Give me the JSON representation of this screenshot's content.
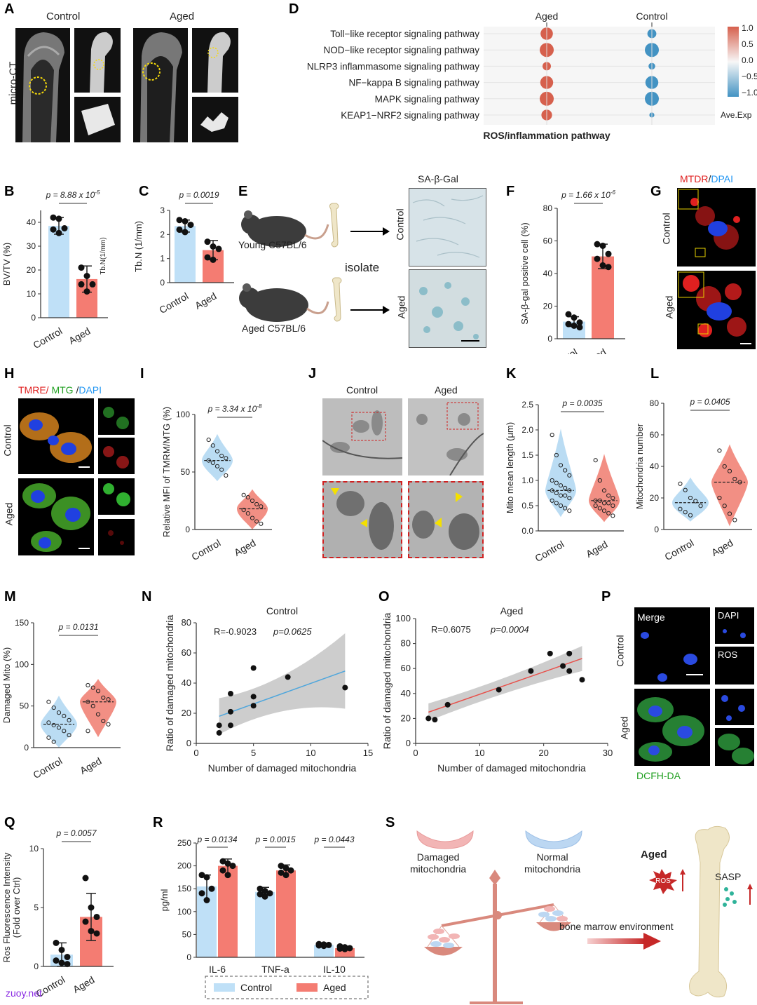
{
  "watermark": "zuoy.net",
  "panels": {
    "A": {
      "letter": "A",
      "col_control": "Control",
      "col_aged": "Aged",
      "row_label": "micro-CT"
    },
    "D": {
      "letter": "D",
      "col_aged": "Aged",
      "col_control": "Control",
      "title": "ROS/inflammation pathway",
      "legend_label": "Ave.Exp",
      "legend_ticks": [
        "1.0",
        "0.5",
        "0.0",
        "−0.5",
        "−1.0"
      ]
    },
    "B": {
      "letter": "B",
      "p": "p = 8.88 x 10",
      "exp": "-5",
      "ylabel": "BV/TV  (%)",
      "side": "Tb.N(1/mm)",
      "yticks": [
        "0",
        "10",
        "20",
        "30",
        "40"
      ],
      "cats": [
        "Control",
        "Aged"
      ]
    },
    "C": {
      "letter": "C",
      "p": "p = 0.0019",
      "ylabel": "Tb.N (1/mm)",
      "yticks": [
        "0",
        "1",
        "2",
        "3"
      ],
      "cats": [
        "Control",
        "Aged"
      ]
    },
    "E": {
      "letter": "E",
      "young": "Young C57BL/6",
      "aged": "Aged C57BL/6",
      "isolate": "isolate",
      "title": "SA-β-Gal",
      "row_control": "Control",
      "row_aged": "Aged"
    },
    "F": {
      "letter": "F",
      "p": "p = 1.66 x 10",
      "exp": "-6",
      "ylabel": "SA-β-gal positive cell (%)",
      "yticks": [
        "0",
        "20",
        "40",
        "60",
        "80"
      ],
      "cats": [
        "Control",
        "Aged"
      ]
    },
    "G": {
      "letter": "G",
      "stain1": "MTDR",
      "slash": "/",
      "stain2": "DPAI",
      "row_control": "Control",
      "row_aged": "Aged"
    },
    "H": {
      "letter": "H",
      "s1": "TMRE/",
      "s2": " MTG",
      "s3": " /",
      "s4": "DAPI",
      "row_control": "Control",
      "row_aged": "Aged"
    },
    "I": {
      "letter": "I",
      "p": "p = 3.34 x 10",
      "exp": "-8",
      "ylabel": "Relative MFI of TMRM/MTG (%)",
      "yticks": [
        "0",
        "50",
        "100"
      ],
      "cats": [
        "Control",
        "Aged"
      ]
    },
    "J": {
      "letter": "J",
      "col_control": "Control",
      "col_aged": "Aged"
    },
    "K": {
      "letter": "K",
      "p": "p = 0.0035",
      "ylabel": "Mito mean length (μm)",
      "yticks": [
        "0.0",
        "0.5",
        "1.0",
        "1.5",
        "2.0",
        "2.5"
      ],
      "cats": [
        "Control",
        "Aged"
      ]
    },
    "L": {
      "letter": "L",
      "p": "p = 0.0405",
      "ylabel": "Mitochondria number",
      "yticks": [
        "0",
        "20",
        "40",
        "60",
        "80"
      ],
      "cats": [
        "Control",
        "Aged"
      ]
    },
    "M": {
      "letter": "M",
      "p": "p = 0.0131",
      "ylabel": "Damaged Mito (%)",
      "yticks": [
        "0",
        "50",
        "100",
        "150"
      ],
      "cats": [
        "Control",
        "Aged"
      ]
    },
    "N": {
      "letter": "N",
      "title": "Control",
      "r": "R=-0.9023",
      "p": "p=0.0625",
      "xlabel": "Number of damaged mitochondria",
      "ylabel": "Ratio of damaged mitochondria",
      "xticks": [
        "0",
        "5",
        "10",
        "15"
      ],
      "yticks": [
        "0",
        "20",
        "40",
        "60",
        "80"
      ]
    },
    "O": {
      "letter": "O",
      "title": "Aged",
      "r": "R=0.6075",
      "p": "p=0.0004",
      "xlabel": "Number of damaged mitochondria",
      "ylabel": "Ratio of damaged mitochondria",
      "xticks": [
        "0",
        "10",
        "20",
        "30"
      ],
      "yticks": [
        "0",
        "20",
        "40",
        "60",
        "80",
        "100"
      ]
    },
    "P": {
      "letter": "P",
      "merge": "Merge",
      "dapi": "DAPI",
      "ros": "ROS",
      "row_control": "Control",
      "row_aged": "Aged",
      "stain": "DCFH-DA"
    },
    "Q": {
      "letter": "Q",
      "p": "p = 0.0057",
      "ylabel1": "Ros Fluorescence Intensity",
      "ylabel2": "(Fold over Ctrl)",
      "yticks": [
        "0",
        "5",
        "10"
      ],
      "cats": [
        "Control",
        "Aged"
      ]
    },
    "R": {
      "letter": "R",
      "ylabel": "pg/ml",
      "yticks": [
        "0",
        "50",
        "100",
        "150",
        "200",
        "250"
      ],
      "groups": [
        "IL-6",
        "TNF-a",
        "IL-10"
      ],
      "pvals": [
        "p = 0.0134",
        "p = 0.0015",
        "p = 0.0443"
      ],
      "legend": [
        "Control",
        "Aged"
      ]
    },
    "S": {
      "letter": "S",
      "damaged": "Damaged\nmitochondria",
      "normal": "Normal\nmitochondria",
      "aged": "Aged",
      "ros": "ROS",
      "sasp": "SASP",
      "env": "bone marrow environment"
    }
  },
  "chart_data": [
    {
      "type": "dotplot",
      "panel": "D",
      "columns": [
        "Aged",
        "Control"
      ],
      "rows": [
        "Toll−like receptor signaling pathway",
        "NOD−like receptor signaling pathway",
        "NLRP3 inflammasome signaling pathway",
        "NF−kappa B signaling pathway",
        "MAPK signaling pathway",
        "KEAP1−NRF2 signaling pathway"
      ],
      "ave_exp": [
        [
          1.0,
          -1.0
        ],
        [
          1.0,
          -1.0
        ],
        [
          1.0,
          -1.0
        ],
        [
          1.0,
          -1.0
        ],
        [
          1.0,
          -1.0
        ],
        [
          1.0,
          -1.0
        ]
      ],
      "size": [
        [
          0.85,
          0.55
        ],
        [
          1.0,
          1.0
        ],
        [
          0.5,
          0.35
        ],
        [
          0.9,
          0.9
        ],
        [
          1.0,
          1.0
        ],
        [
          0.7,
          0.2
        ]
      ],
      "colors": {
        "high": "#d6604d",
        "low": "#4393c3"
      }
    },
    {
      "type": "bar",
      "panel": "B",
      "categories": [
        "Control",
        "Aged"
      ],
      "values": [
        38.5,
        16.2
      ],
      "sd": [
        3.5,
        5.5
      ],
      "ylim": [
        0,
        45
      ],
      "points": [
        [
          42,
          41.5,
          37.5,
          37,
          35.5
        ],
        [
          21,
          17.5,
          14,
          14,
          11
        ]
      ]
    },
    {
      "type": "bar",
      "panel": "C",
      "categories": [
        "Control",
        "Aged"
      ],
      "values": [
        2.35,
        1.35
      ],
      "sd": [
        0.25,
        0.4
      ],
      "ylim": [
        0,
        3
      ],
      "points": [
        [
          2.6,
          2.55,
          2.4,
          2.2,
          2.1
        ],
        [
          1.7,
          1.5,
          1.4,
          1.05,
          0.95
        ]
      ]
    },
    {
      "type": "bar",
      "panel": "F",
      "categories": [
        "Control",
        "Aged"
      ],
      "values": [
        10.5,
        50.5
      ],
      "sd": [
        3.0,
        7.5
      ],
      "ylim": [
        0,
        80
      ],
      "points": [
        [
          15,
          13,
          10,
          9,
          8,
          7
        ],
        [
          58,
          57,
          52,
          49,
          45,
          44
        ]
      ]
    },
    {
      "type": "violin",
      "panel": "I",
      "categories": [
        "Control",
        "Aged"
      ],
      "medians": [
        60,
        18
      ],
      "ylim": [
        0,
        100
      ],
      "points": [
        [
          78,
          73,
          68,
          64,
          62,
          60,
          58,
          55,
          52,
          47
        ],
        [
          30,
          28,
          25,
          22,
          20,
          17,
          14,
          10,
          7,
          5
        ]
      ]
    },
    {
      "type": "violin",
      "panel": "K",
      "categories": [
        "Control",
        "Aged"
      ],
      "medians": [
        0.8,
        0.6
      ],
      "ylim": [
        0,
        2.5
      ],
      "points": [
        [
          1.9,
          1.5,
          1.3,
          1.2,
          1.1,
          1.0,
          0.95,
          0.9,
          0.85,
          0.8,
          0.8,
          0.75,
          0.7,
          0.7,
          0.65,
          0.6,
          0.55,
          0.5,
          0.45,
          0.4
        ],
        [
          1.4,
          1.0,
          0.8,
          0.7,
          0.65,
          0.6,
          0.6,
          0.55,
          0.55,
          0.5,
          0.5,
          0.45,
          0.4,
          0.35,
          0.3
        ]
      ]
    },
    {
      "type": "violin",
      "panel": "L",
      "categories": [
        "Control",
        "Aged"
      ],
      "medians": [
        17,
        30
      ],
      "ylim": [
        0,
        80
      ],
      "points": [
        [
          29,
          25,
          20,
          18,
          15,
          13,
          11,
          9
        ],
        [
          50,
          40,
          37,
          32,
          30,
          20,
          15,
          10,
          6
        ]
      ]
    },
    {
      "type": "violin",
      "panel": "M",
      "categories": [
        "Control",
        "Aged"
      ],
      "medians": [
        28,
        55
      ],
      "ylim": [
        0,
        150
      ],
      "points": [
        [
          55,
          48,
          42,
          38,
          33,
          30,
          27,
          24,
          20,
          15,
          12,
          7
        ],
        [
          75,
          72,
          68,
          60,
          58,
          55,
          50,
          40,
          32,
          28,
          20
        ]
      ]
    },
    {
      "type": "scatter",
      "panel": "N",
      "xlim": [
        0,
        15
      ],
      "ylim": [
        0,
        80
      ],
      "x": [
        2,
        2,
        3,
        3,
        3,
        5,
        5,
        5,
        8,
        13
      ],
      "y": [
        7,
        12,
        33,
        21,
        12,
        50,
        31,
        25,
        44,
        37
      ],
      "fit": [
        [
          2,
          18
        ],
        [
          13,
          48
        ]
      ]
    },
    {
      "type": "scatter",
      "panel": "O",
      "xlim": [
        0,
        30
      ],
      "ylim": [
        0,
        100
      ],
      "x": [
        2,
        3,
        5,
        13,
        18,
        21,
        23,
        24,
        24,
        26
      ],
      "y": [
        20,
        19,
        31,
        43,
        58,
        72,
        62,
        72,
        58,
        51
      ],
      "fit": [
        [
          2,
          25
        ],
        [
          26,
          68
        ]
      ]
    },
    {
      "type": "bar",
      "panel": "Q",
      "categories": [
        "Control",
        "Aged"
      ],
      "values": [
        1.0,
        4.2
      ],
      "sd": [
        1.0,
        2.0
      ],
      "ylim": [
        0,
        10
      ],
      "points": [
        [
          2.0,
          1.4,
          0.8,
          0.5,
          0.3,
          0.2
        ],
        [
          7.5,
          5.0,
          4.2,
          3.8,
          3.0,
          2.8
        ]
      ]
    },
    {
      "type": "bar",
      "panel": "R",
      "categories": [
        "IL-6",
        "TNF-a",
        "IL-10"
      ],
      "series": [
        {
          "name": "Control",
          "values": [
            155,
            143,
            27
          ],
          "sd": [
            25,
            10,
            3
          ],
          "points": [
            [
              180,
              175,
              150,
              140,
              125
            ],
            [
              150,
              145,
              140,
              138,
              133
            ],
            [
              29,
              28,
              27,
              26,
              25
            ]
          ]
        },
        {
          "name": "Aged",
          "values": [
            200,
            190,
            20
          ],
          "sd": [
            15,
            12,
            3
          ],
          "points": [
            [
              210,
              205,
              200,
              190,
              180
            ],
            [
              200,
              195,
              190,
              185,
              180
            ],
            [
              24,
              22,
              20,
              19,
              18
            ]
          ]
        }
      ],
      "ylim": [
        0,
        250
      ]
    }
  ],
  "colors": {
    "control": "#bfe0f7",
    "aged": "#f47c72",
    "control_violin": "#aed6f1",
    "aged_violin": "#f07b6f",
    "fit_control": "#4ea6dc",
    "fit_aged": "#e8504a"
  }
}
